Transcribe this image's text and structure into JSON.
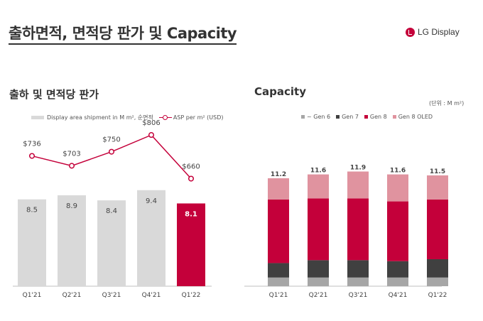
{
  "header": {
    "title": "출하면적, 면적당 판가 및 Capacity",
    "logo_text": "LG Display"
  },
  "colors": {
    "accent": "#c4003a",
    "bar_gray": "#d9d9d9",
    "gen6": "#a6a6a6",
    "gen7": "#404040",
    "gen8": "#c4003a",
    "gen8_oled": "#e0939f",
    "text": "#333333"
  },
  "left_section": {
    "title": "출하 및 면적당 판가",
    "legend": {
      "bar_label": "Display area shipment in M m², 순면적",
      "line_label": "ASP per m² (USD)"
    }
  },
  "right_section": {
    "title": "Capacity",
    "unit": "(단위 : M m²)",
    "legend": [
      "~ Gen 6",
      "Gen 7",
      "Gen 8",
      "Gen 8 OLED"
    ]
  },
  "chart_data": [
    {
      "type": "bar",
      "title": "출하 및 면적당 판가",
      "categories": [
        "Q1'21",
        "Q2'21",
        "Q3'21",
        "Q4'21",
        "Q1'22"
      ],
      "series": [
        {
          "name": "Display area shipment in M m², 순면적",
          "type": "bar",
          "values": [
            8.5,
            8.9,
            8.4,
            9.4,
            8.1
          ],
          "labels": [
            "8.5",
            "8.9",
            "8.4",
            "9.4",
            "8.1"
          ],
          "highlight_index": 4
        },
        {
          "name": "ASP per m² (USD)",
          "type": "line",
          "values": [
            736,
            703,
            750,
            806,
            660
          ],
          "labels": [
            "$736",
            "$703",
            "$750",
            "$806",
            "$660"
          ]
        }
      ],
      "xlabel": "",
      "ylabel": "",
      "ylim_bar": [
        0,
        15.5
      ],
      "ylim_line": [
        300,
        830
      ],
      "grid": false,
      "legend_position": "top"
    },
    {
      "type": "bar",
      "stacked": true,
      "title": "Capacity",
      "unit": "(단위 : M m²)",
      "categories": [
        "Q1'21",
        "Q2'21",
        "Q3'21",
        "Q4'21",
        "Q1'22"
      ],
      "series": [
        {
          "name": "~ Gen 6",
          "values": [
            0.9,
            0.9,
            0.9,
            0.9,
            0.9
          ]
        },
        {
          "name": "Gen 7",
          "values": [
            1.5,
            1.8,
            1.8,
            1.7,
            1.9
          ]
        },
        {
          "name": "Gen 8",
          "values": [
            6.6,
            6.4,
            6.4,
            6.2,
            6.2
          ]
        },
        {
          "name": "Gen 8 OLED",
          "values": [
            2.2,
            2.5,
            2.8,
            2.8,
            2.5
          ]
        }
      ],
      "totals": [
        "11.2",
        "11.6",
        "11.9",
        "11.6",
        "11.5"
      ],
      "ylim": [
        0,
        12.5
      ],
      "grid": false,
      "legend_position": "top"
    }
  ]
}
